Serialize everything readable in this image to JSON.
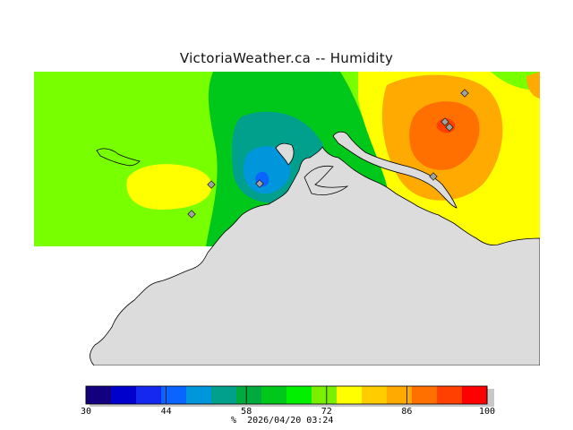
{
  "title": "VictoriaWeather.ca -- Humidity",
  "legend": {
    "min": 30,
    "max": 100,
    "tick_values": [
      "30",
      "44",
      "58",
      "72",
      "86",
      "100"
    ],
    "colors": [
      "#12007e",
      "#0000cc",
      "#1428f0",
      "#0a64ff",
      "#0096dc",
      "#00a08c",
      "#00aa3c",
      "#00c81a",
      "#00f000",
      "#78f000",
      "#ffff00",
      "#ffcc00",
      "#ffaa00",
      "#ff7000",
      "#ff4000",
      "#ff0000"
    ],
    "unit": "%",
    "timestamp": "2026/04/20 03:24"
  },
  "palette": {
    "land": "#dcdcdc",
    "background": "#78ff00"
  }
}
